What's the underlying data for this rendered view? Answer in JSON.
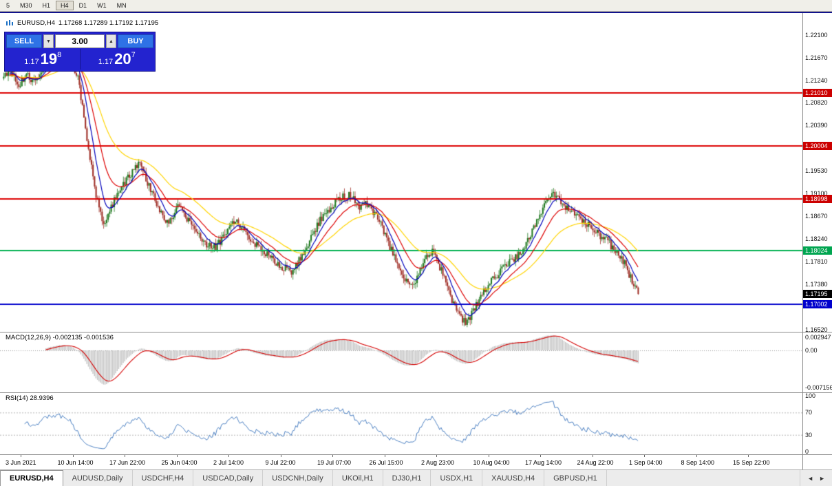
{
  "toolbar": {
    "timeframes": [
      "5",
      "M30",
      "H1",
      "H4",
      "D1",
      "W1",
      "MN"
    ],
    "active": "H4"
  },
  "chart_header": {
    "symbol": "EURUSD,H4",
    "ohlc": "1.17268 1.17289 1.17192 1.17195"
  },
  "trade_panel": {
    "sell_label": "SELL",
    "buy_label": "BUY",
    "lot_size": "3.00",
    "spinner_down": "▼",
    "spinner_up": "▲",
    "sell_price": {
      "base": "1.17",
      "big": "19",
      "sup": "8"
    },
    "buy_price": {
      "base": "1.17",
      "big": "20",
      "sup": "7"
    }
  },
  "panels": {
    "macd": {
      "title": "MACD(12,26,9) -0.002135 -0.001536",
      "axis": [
        "0.002947",
        "0.00",
        "-0.007156"
      ]
    },
    "rsi": {
      "title": "RSI(14) 28.9396",
      "axis": [
        "100",
        "70",
        "30",
        "0"
      ]
    }
  },
  "price_axis": {
    "labels": [
      {
        "text": "1.22100",
        "price": 1.221
      },
      {
        "text": "1.21670",
        "price": 1.2167
      },
      {
        "text": "1.21240",
        "price": 1.2124
      },
      {
        "text": "1.20820",
        "price": 1.2082
      },
      {
        "text": "1.20390",
        "price": 1.2039
      },
      {
        "text": "1.19530",
        "price": 1.1953
      },
      {
        "text": "1.19100",
        "price": 1.191
      },
      {
        "text": "1.18670",
        "price": 1.1867
      },
      {
        "text": "1.18240",
        "price": 1.1824
      },
      {
        "text": "1.17810",
        "price": 1.1781
      },
      {
        "text": "1.17380",
        "price": 1.1738
      },
      {
        "text": "1.16520",
        "price": 1.1652
      }
    ],
    "badges": [
      {
        "text": "1.21010",
        "price": 1.2101,
        "color": "#cc0000"
      },
      {
        "text": "1.20004",
        "price": 1.20004,
        "color": "#cc0000"
      },
      {
        "text": "1.18998",
        "price": 1.18998,
        "color": "#cc0000"
      },
      {
        "text": "1.18024",
        "price": 1.18024,
        "color": "#00a550"
      },
      {
        "text": "1.17195",
        "price": 1.17195,
        "color": "#000000"
      },
      {
        "text": "1.17002",
        "price": 1.17002,
        "color": "#0000cc"
      }
    ]
  },
  "time_axis": {
    "labels": [
      "3 Jun 2021",
      "10 Jun 14:00",
      "17 Jun 22:00",
      "25 Jun 04:00",
      "2 Jul 14:00",
      "9 Jul 22:00",
      "19 Jul 07:00",
      "26 Jul 15:00",
      "2 Aug 23:00",
      "10 Aug 04:00",
      "17 Aug 14:00",
      "24 Aug 22:00",
      "1 Sep 04:00",
      "8 Sep 14:00",
      "15 Sep 22:00"
    ]
  },
  "tabs": {
    "items": [
      {
        "label": "EURUSD,H4",
        "active": true
      },
      {
        "label": "AUDUSD,Daily",
        "active": false
      },
      {
        "label": "USDCHF,H4",
        "active": false
      },
      {
        "label": "USDCAD,Daily",
        "active": false
      },
      {
        "label": "USDCNH,Daily",
        "active": false
      },
      {
        "label": "UKOil,H1",
        "active": false
      },
      {
        "label": "DJ30,H1",
        "active": false
      },
      {
        "label": "USDX,H1",
        "active": false
      },
      {
        "label": "XAUUSD,H4",
        "active": false
      },
      {
        "label": "GBPUSD,H1",
        "active": false
      }
    ],
    "scroll_left": "◄",
    "scroll_right": "►"
  },
  "chart_data": {
    "type": "candlestick",
    "symbol": "EURUSD",
    "timeframe": "H4",
    "ohlc_current": {
      "open": 1.17268,
      "high": 1.17289,
      "low": 1.17192,
      "close": 1.17195
    },
    "current_price": 1.17195,
    "price_range": {
      "max": 1.2252,
      "min": 1.1648
    },
    "num_candles": 420,
    "candle_area_frac": 0.797,
    "colors": {
      "up": "#227a22",
      "down": "#a03028"
    },
    "levels": [
      {
        "price": 1.2101,
        "color": "#dd0000"
      },
      {
        "price": 1.20004,
        "color": "#dd0000"
      },
      {
        "price": 1.18998,
        "color": "#dd0000"
      },
      {
        "price": 1.18024,
        "color": "#00b050"
      },
      {
        "price": 1.17002,
        "color": "#0000cc"
      }
    ],
    "mas": [
      {
        "name": "MA-slow",
        "period": 48,
        "color": "#ffd400"
      },
      {
        "name": "MA-medium",
        "period": 21,
        "color": "#dd0000"
      },
      {
        "name": "MA-fast",
        "period": 9,
        "color": "#0000bb"
      }
    ],
    "indicators": {
      "macd": {
        "fast": 12,
        "slow": 26,
        "signal": 9,
        "current": [
          -0.002135,
          -0.001536
        ],
        "histogram_color": "#c2c2c2",
        "signal_color": "#d40000"
      },
      "rsi": {
        "period": 14,
        "current": 28.9396,
        "line_color": "#4a7fc1",
        "levels": [
          70,
          30
        ]
      }
    },
    "anchors": [
      [
        0.0,
        1.2128
      ],
      [
        0.012,
        1.215
      ],
      [
        0.022,
        1.2108
      ],
      [
        0.035,
        1.2135
      ],
      [
        0.05,
        1.212
      ],
      [
        0.065,
        1.215
      ],
      [
        0.08,
        1.2165
      ],
      [
        0.095,
        1.2175
      ],
      [
        0.108,
        1.216
      ],
      [
        0.118,
        1.2125
      ],
      [
        0.128,
        1.204
      ],
      [
        0.138,
        1.196
      ],
      [
        0.15,
        1.188
      ],
      [
        0.158,
        1.1856
      ],
      [
        0.17,
        1.1885
      ],
      [
        0.185,
        1.1922
      ],
      [
        0.2,
        1.1948
      ],
      [
        0.215,
        1.1972
      ],
      [
        0.23,
        1.192
      ],
      [
        0.245,
        1.1882
      ],
      [
        0.26,
        1.185
      ],
      [
        0.275,
        1.1886
      ],
      [
        0.29,
        1.1862
      ],
      [
        0.305,
        1.1832
      ],
      [
        0.32,
        1.1812
      ],
      [
        0.335,
        1.1808
      ],
      [
        0.35,
        1.1836
      ],
      [
        0.365,
        1.1858
      ],
      [
        0.38,
        1.184
      ],
      [
        0.395,
        1.1816
      ],
      [
        0.41,
        1.18
      ],
      [
        0.425,
        1.1786
      ],
      [
        0.44,
        1.1768
      ],
      [
        0.455,
        1.1762
      ],
      [
        0.47,
        1.1792
      ],
      [
        0.485,
        1.1826
      ],
      [
        0.5,
        1.1862
      ],
      [
        0.515,
        1.1882
      ],
      [
        0.53,
        1.1902
      ],
      [
        0.545,
        1.1908
      ],
      [
        0.56,
        1.1886
      ],
      [
        0.575,
        1.189
      ],
      [
        0.59,
        1.1862
      ],
      [
        0.605,
        1.182
      ],
      [
        0.62,
        1.1776
      ],
      [
        0.635,
        1.1746
      ],
      [
        0.65,
        1.1742
      ],
      [
        0.665,
        1.179
      ],
      [
        0.677,
        1.1804
      ],
      [
        0.69,
        1.1762
      ],
      [
        0.705,
        1.1712
      ],
      [
        0.72,
        1.1674
      ],
      [
        0.73,
        1.1665
      ],
      [
        0.745,
        1.17
      ],
      [
        0.76,
        1.173
      ],
      [
        0.775,
        1.1752
      ],
      [
        0.79,
        1.1772
      ],
      [
        0.805,
        1.1788
      ],
      [
        0.82,
        1.1806
      ],
      [
        0.835,
        1.1842
      ],
      [
        0.85,
        1.1882
      ],
      [
        0.866,
        1.1908
      ],
      [
        0.88,
        1.1892
      ],
      [
        0.895,
        1.1876
      ],
      [
        0.91,
        1.1862
      ],
      [
        0.925,
        1.1846
      ],
      [
        0.94,
        1.183
      ],
      [
        0.952,
        1.182
      ],
      [
        0.963,
        1.18
      ],
      [
        0.975,
        1.1786
      ],
      [
        0.986,
        1.1756
      ],
      [
        1.0,
        1.172
      ]
    ]
  }
}
